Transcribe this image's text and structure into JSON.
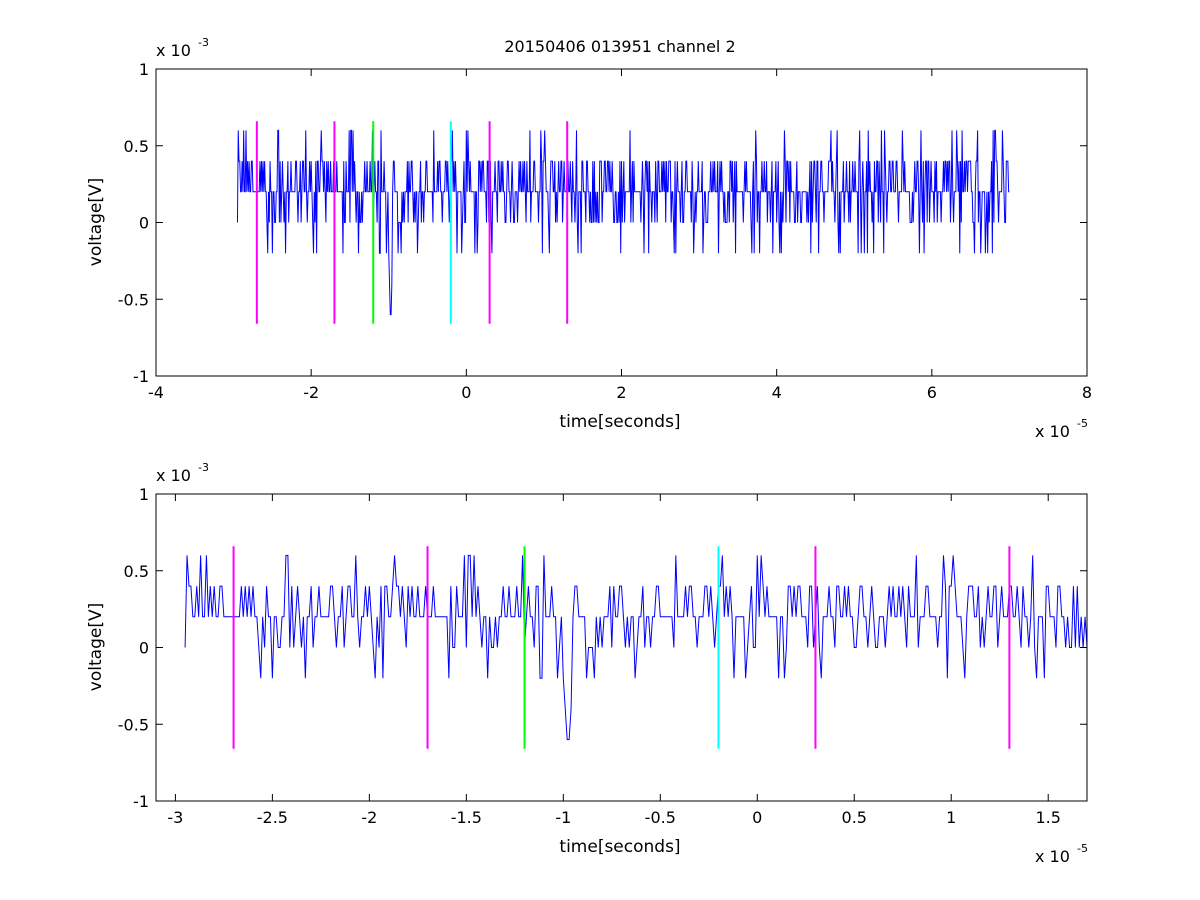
{
  "chart_data": [
    {
      "type": "line",
      "title": "20150406 013951 channel 2",
      "xlabel": "time[seconds]",
      "ylabel": "voltage[V]",
      "x_exponent_label": "x 10",
      "x_exponent": "-5",
      "y_exponent_label": "x 10",
      "y_exponent": "-3",
      "xlim": [
        -4e-05,
        8e-05
      ],
      "ylim": [
        -0.001,
        0.001
      ],
      "x_ticks": [
        -4,
        -2,
        0,
        2,
        4,
        6,
        8
      ],
      "x_tick_labels": [
        "-4",
        "-2",
        "0",
        "2",
        "4",
        "6",
        "8"
      ],
      "y_ticks": [
        -1,
        -0.5,
        0,
        0.5,
        1
      ],
      "y_tick_labels": [
        "-1",
        "-0.5",
        "0",
        "0.5",
        "1"
      ],
      "grid": false,
      "series": [
        {
          "color": "#0000ff",
          "signal": {
            "x_start": -2.95e-05,
            "x_end": 7e-05,
            "step": 1e-07,
            "baseline": 0.0002,
            "quantum": 0.0002,
            "min": -0.0006,
            "max": 0.0006
          }
        }
      ],
      "markers": [
        {
          "x": -2.7e-05,
          "color": "#ff00ff"
        },
        {
          "x": -1.7e-05,
          "color": "#ff00ff"
        },
        {
          "x": -1.2e-05,
          "color": "#00ff00"
        },
        {
          "x": -2e-06,
          "color": "#00ffff"
        },
        {
          "x": 3e-06,
          "color": "#ff00ff"
        },
        {
          "x": 1.3e-05,
          "color": "#ff00ff"
        }
      ],
      "marker_range": [
        -0.00066,
        0.00066
      ]
    },
    {
      "type": "line",
      "title": "",
      "xlabel": "time[seconds]",
      "ylabel": "voltage[V]",
      "x_exponent_label": "x 10",
      "x_exponent": "-5",
      "y_exponent_label": "x 10",
      "y_exponent": "-3",
      "xlim": [
        -3.1e-05,
        1.7e-05
      ],
      "ylim": [
        -0.001,
        0.001
      ],
      "x_ticks": [
        -3,
        -2.5,
        -2,
        -1.5,
        -1,
        -0.5,
        0,
        0.5,
        1,
        1.5
      ],
      "x_tick_labels": [
        "-3",
        "-2.5",
        "-2",
        "-1.5",
        "-1",
        "-0.5",
        "0",
        "0.5",
        "1",
        "1.5"
      ],
      "y_ticks": [
        -1,
        -0.5,
        0,
        0.5,
        1
      ],
      "y_tick_labels": [
        "-1",
        "-0.5",
        "0",
        "0.5",
        "1"
      ],
      "grid": false,
      "series": [
        {
          "color": "#0000ff",
          "signal": {
            "x_start": -2.95e-05,
            "x_end": 1.7e-05,
            "step": 1e-07,
            "baseline": 0.0002,
            "quantum": 0.0002,
            "min": -0.0006,
            "max": 0.0006
          }
        }
      ],
      "markers": [
        {
          "x": -2.7e-05,
          "color": "#ff00ff"
        },
        {
          "x": -1.7e-05,
          "color": "#ff00ff"
        },
        {
          "x": -1.2e-05,
          "color": "#00ff00"
        },
        {
          "x": -2e-06,
          "color": "#00ffff"
        },
        {
          "x": 3e-06,
          "color": "#ff00ff"
        },
        {
          "x": 1.3e-05,
          "color": "#ff00ff"
        }
      ],
      "marker_range": [
        -0.00066,
        0.00066
      ]
    }
  ]
}
